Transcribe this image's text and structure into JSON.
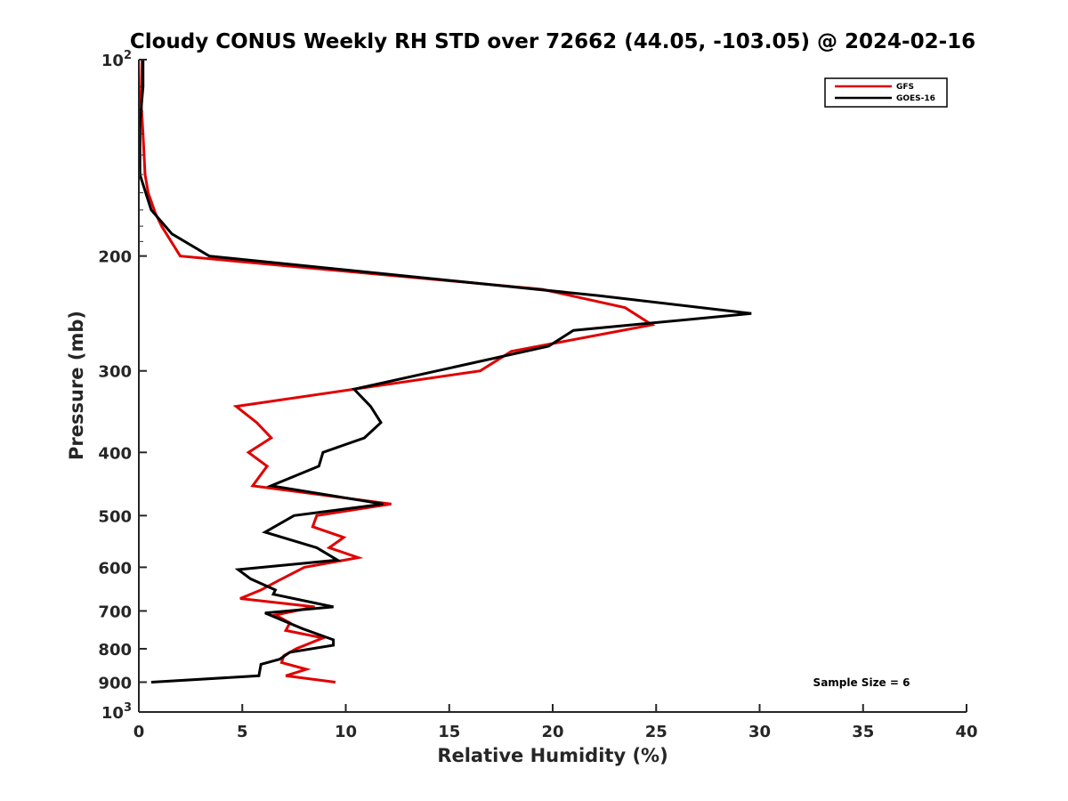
{
  "chart_data": {
    "type": "line",
    "title": "Cloudy CONUS Weekly RH STD over 72662 (44.05, -103.05) @ 2024-02-16",
    "xlabel": "Relative Humidity (%)",
    "ylabel": "Pressure (mb)",
    "xlim": [
      0,
      40
    ],
    "ylim": [
      100,
      1000
    ],
    "y_scale": "log",
    "y_reversed": true,
    "grid": false,
    "legend_position": "top-right",
    "x_ticks": [
      "0",
      "5",
      "10",
      "15",
      "20",
      "25",
      "30",
      "35",
      "40"
    ],
    "y_ticks": [
      {
        "value": 100,
        "base": "10",
        "exp": "2"
      },
      {
        "value": 200,
        "label": "200"
      },
      {
        "value": 300,
        "label": "300"
      },
      {
        "value": 400,
        "label": "400"
      },
      {
        "value": 500,
        "label": "500"
      },
      {
        "value": 600,
        "label": "600"
      },
      {
        "value": 700,
        "label": "700"
      },
      {
        "value": 800,
        "label": "800"
      },
      {
        "value": 900,
        "label": "900"
      },
      {
        "value": 1000,
        "base": "10",
        "exp": "3"
      }
    ],
    "series": [
      {
        "name": "GFS",
        "color": "#e00000",
        "points": [
          [
            0.15,
            100
          ],
          [
            0.1,
            115
          ],
          [
            0.2,
            130
          ],
          [
            0.3,
            150
          ],
          [
            0.45,
            160
          ],
          [
            0.8,
            172
          ],
          [
            1.1,
            180
          ],
          [
            2.0,
            200
          ],
          [
            19.5,
            225
          ],
          [
            23.5,
            240
          ],
          [
            24.8,
            255
          ],
          [
            18.0,
            280
          ],
          [
            16.5,
            300
          ],
          [
            4.7,
            340
          ],
          [
            5.7,
            360
          ],
          [
            6.4,
            380
          ],
          [
            5.3,
            400
          ],
          [
            6.2,
            420
          ],
          [
            5.5,
            450
          ],
          [
            12.2,
            480
          ],
          [
            8.6,
            500
          ],
          [
            8.4,
            520
          ],
          [
            9.9,
            540
          ],
          [
            9.2,
            560
          ],
          [
            10.6,
            580
          ],
          [
            8.0,
            600
          ],
          [
            6.7,
            630
          ],
          [
            5.9,
            650
          ],
          [
            4.9,
            670
          ],
          [
            8.5,
            690
          ],
          [
            6.6,
            710
          ],
          [
            7.3,
            730
          ],
          [
            7.1,
            750
          ],
          [
            8.9,
            770
          ],
          [
            7.6,
            800
          ],
          [
            7.0,
            820
          ],
          [
            6.9,
            840
          ],
          [
            8.1,
            860
          ],
          [
            7.1,
            880
          ],
          [
            9.5,
            900
          ]
        ]
      },
      {
        "name": "GOES-16",
        "color": "#000000",
        "points": [
          [
            0.2,
            100
          ],
          [
            0.2,
            110
          ],
          [
            0.05,
            125
          ],
          [
            0.05,
            150
          ],
          [
            0.6,
            170
          ],
          [
            1.6,
            185
          ],
          [
            3.4,
            200
          ],
          [
            22.2,
            230
          ],
          [
            29.6,
            245
          ],
          [
            21.0,
            260
          ],
          [
            19.8,
            275
          ],
          [
            10.4,
            320
          ],
          [
            11.2,
            340
          ],
          [
            11.7,
            360
          ],
          [
            10.9,
            380
          ],
          [
            8.9,
            400
          ],
          [
            8.7,
            420
          ],
          [
            6.4,
            450
          ],
          [
            11.8,
            480
          ],
          [
            7.5,
            500
          ],
          [
            6.1,
            530
          ],
          [
            8.6,
            560
          ],
          [
            9.6,
            585
          ],
          [
            4.8,
            605
          ],
          [
            5.4,
            625
          ],
          [
            6.6,
            650
          ],
          [
            6.5,
            660
          ],
          [
            9.4,
            690
          ],
          [
            6.1,
            705
          ],
          [
            7.9,
            745
          ],
          [
            9.4,
            775
          ],
          [
            9.4,
            790
          ],
          [
            7.3,
            810
          ],
          [
            6.8,
            830
          ],
          [
            5.9,
            845
          ],
          [
            5.8,
            880
          ],
          [
            0.6,
            900
          ]
        ]
      }
    ],
    "annotations": [
      {
        "text": "Sample Size = 6"
      }
    ]
  }
}
